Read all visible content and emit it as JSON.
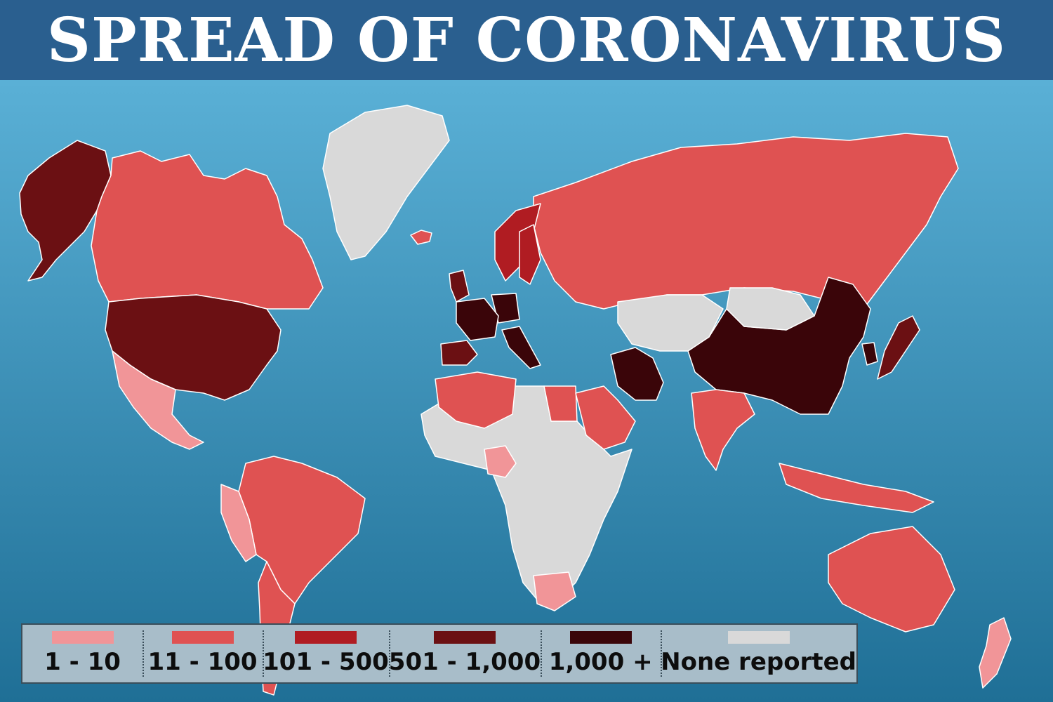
{
  "title": "SPREAD OF CORONAVIRUS",
  "colors": {
    "banner": "#2a5f8f",
    "ocean": "#2a7fa6",
    "c1_10": "#f19598",
    "c11_100": "#df5252",
    "c101_500": "#b01c22",
    "c501_1000": "#6b1013",
    "c1000_plus": "#3a0509",
    "none_reported": "#d9d9d9"
  },
  "legend": [
    {
      "label": "1 - 10",
      "color": "#f19598"
    },
    {
      "label": "11 - 100",
      "color": "#df5252"
    },
    {
      "label": "101 - 500",
      "color": "#b01c22"
    },
    {
      "label": "501 - 1,000",
      "color": "#6b1013"
    },
    {
      "label": "1,000 +",
      "color": "#3a0509"
    },
    {
      "label": "None reported",
      "color": "#d9d9d9"
    }
  ],
  "regions": [
    {
      "name": "Alaska",
      "category": "501 - 1,000"
    },
    {
      "name": "Canada",
      "category": "11 - 100"
    },
    {
      "name": "United States",
      "category": "501 - 1,000"
    },
    {
      "name": "Mexico",
      "category": "1 - 10"
    },
    {
      "name": "Greenland",
      "category": "None reported"
    },
    {
      "name": "Brazil",
      "category": "11 - 100"
    },
    {
      "name": "Argentina",
      "category": "11 - 100"
    },
    {
      "name": "Peru",
      "category": "1 - 10"
    },
    {
      "name": "Russia",
      "category": "11 - 100"
    },
    {
      "name": "China",
      "category": "1,000 +"
    },
    {
      "name": "Iran",
      "category": "1,000 +"
    },
    {
      "name": "Italy",
      "category": "1,000 +"
    },
    {
      "name": "Germany",
      "category": "1,000 +"
    },
    {
      "name": "France",
      "category": "1,000 +"
    },
    {
      "name": "Spain",
      "category": "501 - 1,000"
    },
    {
      "name": "United Kingdom",
      "category": "501 - 1,000"
    },
    {
      "name": "Norway",
      "category": "101 - 500"
    },
    {
      "name": "Sweden",
      "category": "101 - 500"
    },
    {
      "name": "Japan",
      "category": "501 - 1,000"
    },
    {
      "name": "South Korea",
      "category": "1,000 +"
    },
    {
      "name": "India",
      "category": "11 - 100"
    },
    {
      "name": "Australia",
      "category": "11 - 100"
    },
    {
      "name": "Kazakhstan",
      "category": "None reported"
    },
    {
      "name": "Mongolia",
      "category": "None reported"
    },
    {
      "name": "Africa",
      "category": "None reported"
    },
    {
      "name": "Algeria",
      "category": "11 - 100"
    },
    {
      "name": "Egypt",
      "category": "11 - 100"
    },
    {
      "name": "Saudi Arabia",
      "category": "11 - 100"
    },
    {
      "name": "South Africa",
      "category": "1 - 10"
    },
    {
      "name": "Nigeria",
      "category": "1 - 10"
    },
    {
      "name": "Indonesia",
      "category": "11 - 100"
    },
    {
      "name": "New Zealand",
      "category": "1 - 10"
    },
    {
      "name": "Iceland",
      "category": "11 - 100"
    }
  ]
}
